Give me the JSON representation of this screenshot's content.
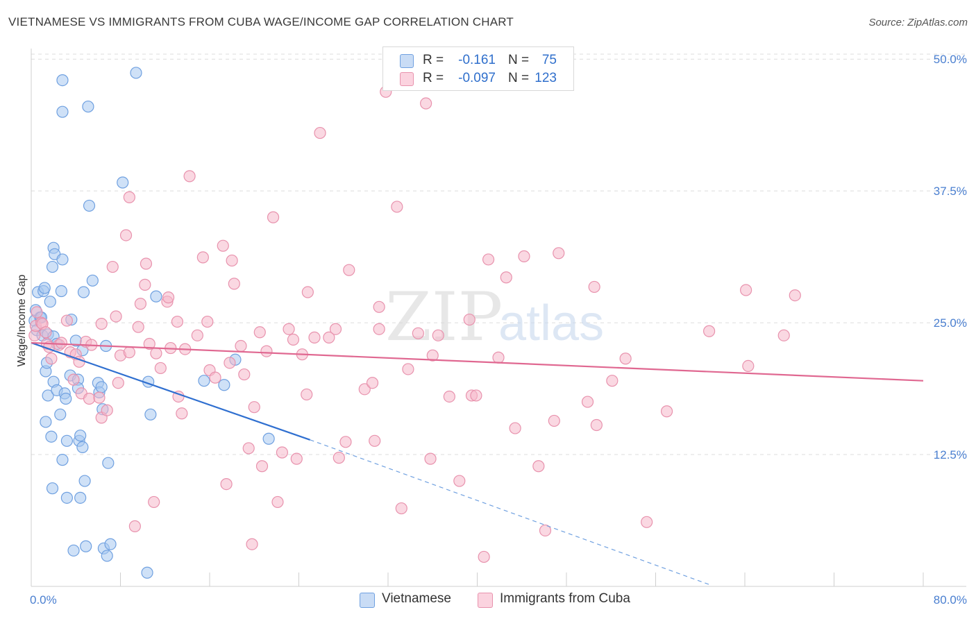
{
  "header": {
    "title": "VIETNAMESE VS IMMIGRANTS FROM CUBA WAGE/INCOME GAP CORRELATION CHART",
    "source": "Source: ZipAtlas.com"
  },
  "watermark": {
    "zip": "ZIP",
    "atlas": "atlas"
  },
  "legend_top": {
    "rows": [
      {
        "r_label": "R =",
        "r_value": "-0.161",
        "n_label": "N =",
        "n_value": "75",
        "color": "#a8c8f0"
      },
      {
        "r_label": "R =",
        "r_value": "-0.097",
        "n_label": "N =",
        "n_value": "123",
        "color": "#f5b8cb"
      }
    ]
  },
  "legend_bottom": {
    "items": [
      {
        "label": "Vietnamese",
        "color": "#a8c8f0"
      },
      {
        "label": "Immigrants from Cuba",
        "color": "#f5b8cb"
      }
    ]
  },
  "chart_data": {
    "type": "scatter",
    "title": "VIETNAMESE VS IMMIGRANTS FROM CUBA WAGE/INCOME GAP CORRELATION CHART",
    "xlabel": "",
    "ylabel": "Wage/Income Gap",
    "xlim": [
      0,
      80
    ],
    "ylim": [
      0,
      51
    ],
    "x_tick_labels": [
      "0.0%",
      "80.0%"
    ],
    "y_ticks": [
      12.5,
      25.0,
      37.5,
      50.0
    ],
    "y_tick_labels": [
      "12.5%",
      "25.0%",
      "37.5%",
      "50.0%"
    ],
    "grid": true,
    "legend_position": "top-center",
    "series": [
      {
        "name": "Vietnamese",
        "color": "#6fa0e0",
        "fill": "#a8c8f0",
        "points": [
          [
            0.3,
            25.2
          ],
          [
            0.4,
            26.2
          ],
          [
            0.5,
            24.3
          ],
          [
            0.6,
            27.9
          ],
          [
            0.8,
            25.5
          ],
          [
            0.9,
            25.5
          ],
          [
            1.0,
            23.8
          ],
          [
            1.1,
            28.0
          ],
          [
            1.2,
            28.3
          ],
          [
            1.3,
            15.6
          ],
          [
            1.3,
            20.4
          ],
          [
            1.4,
            21.2
          ],
          [
            1.5,
            18.1
          ],
          [
            1.5,
            23.9
          ],
          [
            1.7,
            27.0
          ],
          [
            1.8,
            14.2
          ],
          [
            1.9,
            30.3
          ],
          [
            1.9,
            9.3
          ],
          [
            2.0,
            19.4
          ],
          [
            2.0,
            23.7
          ],
          [
            2.0,
            32.1
          ],
          [
            2.1,
            31.5
          ],
          [
            2.3,
            18.6
          ],
          [
            2.3,
            23.0
          ],
          [
            2.6,
            16.3
          ],
          [
            2.7,
            28.0
          ],
          [
            2.8,
            12.0
          ],
          [
            2.8,
            48.0
          ],
          [
            2.8,
            45.0
          ],
          [
            2.8,
            31.0
          ],
          [
            3.0,
            18.3
          ],
          [
            3.1,
            17.8
          ],
          [
            3.2,
            13.8
          ],
          [
            3.2,
            8.4
          ],
          [
            3.5,
            20.0
          ],
          [
            3.6,
            25.3
          ],
          [
            3.8,
            3.4
          ],
          [
            4.0,
            23.3
          ],
          [
            4.2,
            19.6
          ],
          [
            4.2,
            18.8
          ],
          [
            4.3,
            13.8
          ],
          [
            4.4,
            14.3
          ],
          [
            4.4,
            8.4
          ],
          [
            4.6,
            13.2
          ],
          [
            4.6,
            22.4
          ],
          [
            4.7,
            27.9
          ],
          [
            4.8,
            10.0
          ],
          [
            4.9,
            3.8
          ],
          [
            5.1,
            45.5
          ],
          [
            5.2,
            36.1
          ],
          [
            5.5,
            29.0
          ],
          [
            6.0,
            19.3
          ],
          [
            6.1,
            18.4
          ],
          [
            6.3,
            18.9
          ],
          [
            6.4,
            16.8
          ],
          [
            6.5,
            3.6
          ],
          [
            6.7,
            22.8
          ],
          [
            6.8,
            2.9
          ],
          [
            6.9,
            11.7
          ],
          [
            7.1,
            4.0
          ],
          [
            8.2,
            38.3
          ],
          [
            9.4,
            48.7
          ],
          [
            10.4,
            1.3
          ],
          [
            10.5,
            19.4
          ],
          [
            10.7,
            16.3
          ],
          [
            11.2,
            27.5
          ],
          [
            15.5,
            19.5
          ],
          [
            17.3,
            19.1
          ],
          [
            18.3,
            21.5
          ],
          [
            21.3,
            14.0
          ]
        ]
      },
      {
        "name": "Immigrants from Cuba",
        "color": "#e892ad",
        "fill": "#f5b8cb",
        "points": [
          [
            0.3,
            23.8
          ],
          [
            0.4,
            24.7
          ],
          [
            0.5,
            26.0
          ],
          [
            0.9,
            25.0
          ],
          [
            1.0,
            24.9
          ],
          [
            1.3,
            24.1
          ],
          [
            1.4,
            23.0
          ],
          [
            1.6,
            22.7
          ],
          [
            1.8,
            21.6
          ],
          [
            2.5,
            22.9
          ],
          [
            2.7,
            23.1
          ],
          [
            3.2,
            25.2
          ],
          [
            3.5,
            22.2
          ],
          [
            3.8,
            19.6
          ],
          [
            4.0,
            22.0
          ],
          [
            4.3,
            21.3
          ],
          [
            4.5,
            18.3
          ],
          [
            4.9,
            23.2
          ],
          [
            5.2,
            17.8
          ],
          [
            5.4,
            22.9
          ],
          [
            6.1,
            17.9
          ],
          [
            6.3,
            24.9
          ],
          [
            6.3,
            16.0
          ],
          [
            6.8,
            16.7
          ],
          [
            7.3,
            30.3
          ],
          [
            7.6,
            25.6
          ],
          [
            7.8,
            19.3
          ],
          [
            8.0,
            21.9
          ],
          [
            8.5,
            33.3
          ],
          [
            8.8,
            36.9
          ],
          [
            8.8,
            22.2
          ],
          [
            9.3,
            5.7
          ],
          [
            9.6,
            24.6
          ],
          [
            9.8,
            26.8
          ],
          [
            10.2,
            28.6
          ],
          [
            10.3,
            30.6
          ],
          [
            10.6,
            23.0
          ],
          [
            11.0,
            8.0
          ],
          [
            11.2,
            22.1
          ],
          [
            11.6,
            20.7
          ],
          [
            12.2,
            27.0
          ],
          [
            12.3,
            27.4
          ],
          [
            12.5,
            22.6
          ],
          [
            13.1,
            25.1
          ],
          [
            13.2,
            18.0
          ],
          [
            13.5,
            16.4
          ],
          [
            13.8,
            22.5
          ],
          [
            14.2,
            38.9
          ],
          [
            14.9,
            23.8
          ],
          [
            15.4,
            31.2
          ],
          [
            15.8,
            25.1
          ],
          [
            16.0,
            20.5
          ],
          [
            16.5,
            19.8
          ],
          [
            17.2,
            32.3
          ],
          [
            17.5,
            9.7
          ],
          [
            17.8,
            21.2
          ],
          [
            18.0,
            30.9
          ],
          [
            18.2,
            28.7
          ],
          [
            18.8,
            22.8
          ],
          [
            19.1,
            20.1
          ],
          [
            19.5,
            13.1
          ],
          [
            19.8,
            4.0
          ],
          [
            20.0,
            17.0
          ],
          [
            20.5,
            24.1
          ],
          [
            20.7,
            11.4
          ],
          [
            21.1,
            22.3
          ],
          [
            21.7,
            35.0
          ],
          [
            22.1,
            8.0
          ],
          [
            22.5,
            12.7
          ],
          [
            23.1,
            24.4
          ],
          [
            23.5,
            23.4
          ],
          [
            23.8,
            12.1
          ],
          [
            24.3,
            22.0
          ],
          [
            24.7,
            18.2
          ],
          [
            24.8,
            27.9
          ],
          [
            25.4,
            23.6
          ],
          [
            25.9,
            43.0
          ],
          [
            26.7,
            23.6
          ],
          [
            27.3,
            24.4
          ],
          [
            27.6,
            12.2
          ],
          [
            28.2,
            13.7
          ],
          [
            28.5,
            30.0
          ],
          [
            29.9,
            18.7
          ],
          [
            30.6,
            19.3
          ],
          [
            30.8,
            13.8
          ],
          [
            31.2,
            26.5
          ],
          [
            31.2,
            24.4
          ],
          [
            31.8,
            46.9
          ],
          [
            32.8,
            36.0
          ],
          [
            33.2,
            7.4
          ],
          [
            33.8,
            20.6
          ],
          [
            34.7,
            24.0
          ],
          [
            35.4,
            45.8
          ],
          [
            35.8,
            12.1
          ],
          [
            36.0,
            21.9
          ],
          [
            36.5,
            23.8
          ],
          [
            37.5,
            18.0
          ],
          [
            38.4,
            10.0
          ],
          [
            39.3,
            25.3
          ],
          [
            39.5,
            18.1
          ],
          [
            39.9,
            18.1
          ],
          [
            40.6,
            2.8
          ],
          [
            41.0,
            31.0
          ],
          [
            41.9,
            21.7
          ],
          [
            42.6,
            29.3
          ],
          [
            43.4,
            15.0
          ],
          [
            44.2,
            31.3
          ],
          [
            45.5,
            11.4
          ],
          [
            46.1,
            5.3
          ],
          [
            46.9,
            15.7
          ],
          [
            47.3,
            31.6
          ],
          [
            49.9,
            17.5
          ],
          [
            50.5,
            28.4
          ],
          [
            50.7,
            15.3
          ],
          [
            52.1,
            19.5
          ],
          [
            53.3,
            21.6
          ],
          [
            55.2,
            6.1
          ],
          [
            57.0,
            16.6
          ],
          [
            60.8,
            24.2
          ],
          [
            64.1,
            28.1
          ],
          [
            64.3,
            20.9
          ],
          [
            67.5,
            23.8
          ],
          [
            68.5,
            27.6
          ]
        ]
      }
    ],
    "trend_lines": [
      {
        "series": "Vietnamese",
        "solid": [
          [
            0,
            23.1
          ],
          [
            25,
            13.9
          ]
        ],
        "dashed_to": [
          61,
          0.1
        ]
      },
      {
        "series": "Immigrants from Cuba",
        "solid": [
          [
            0,
            23.1
          ],
          [
            80,
            19.5
          ]
        ]
      }
    ]
  }
}
